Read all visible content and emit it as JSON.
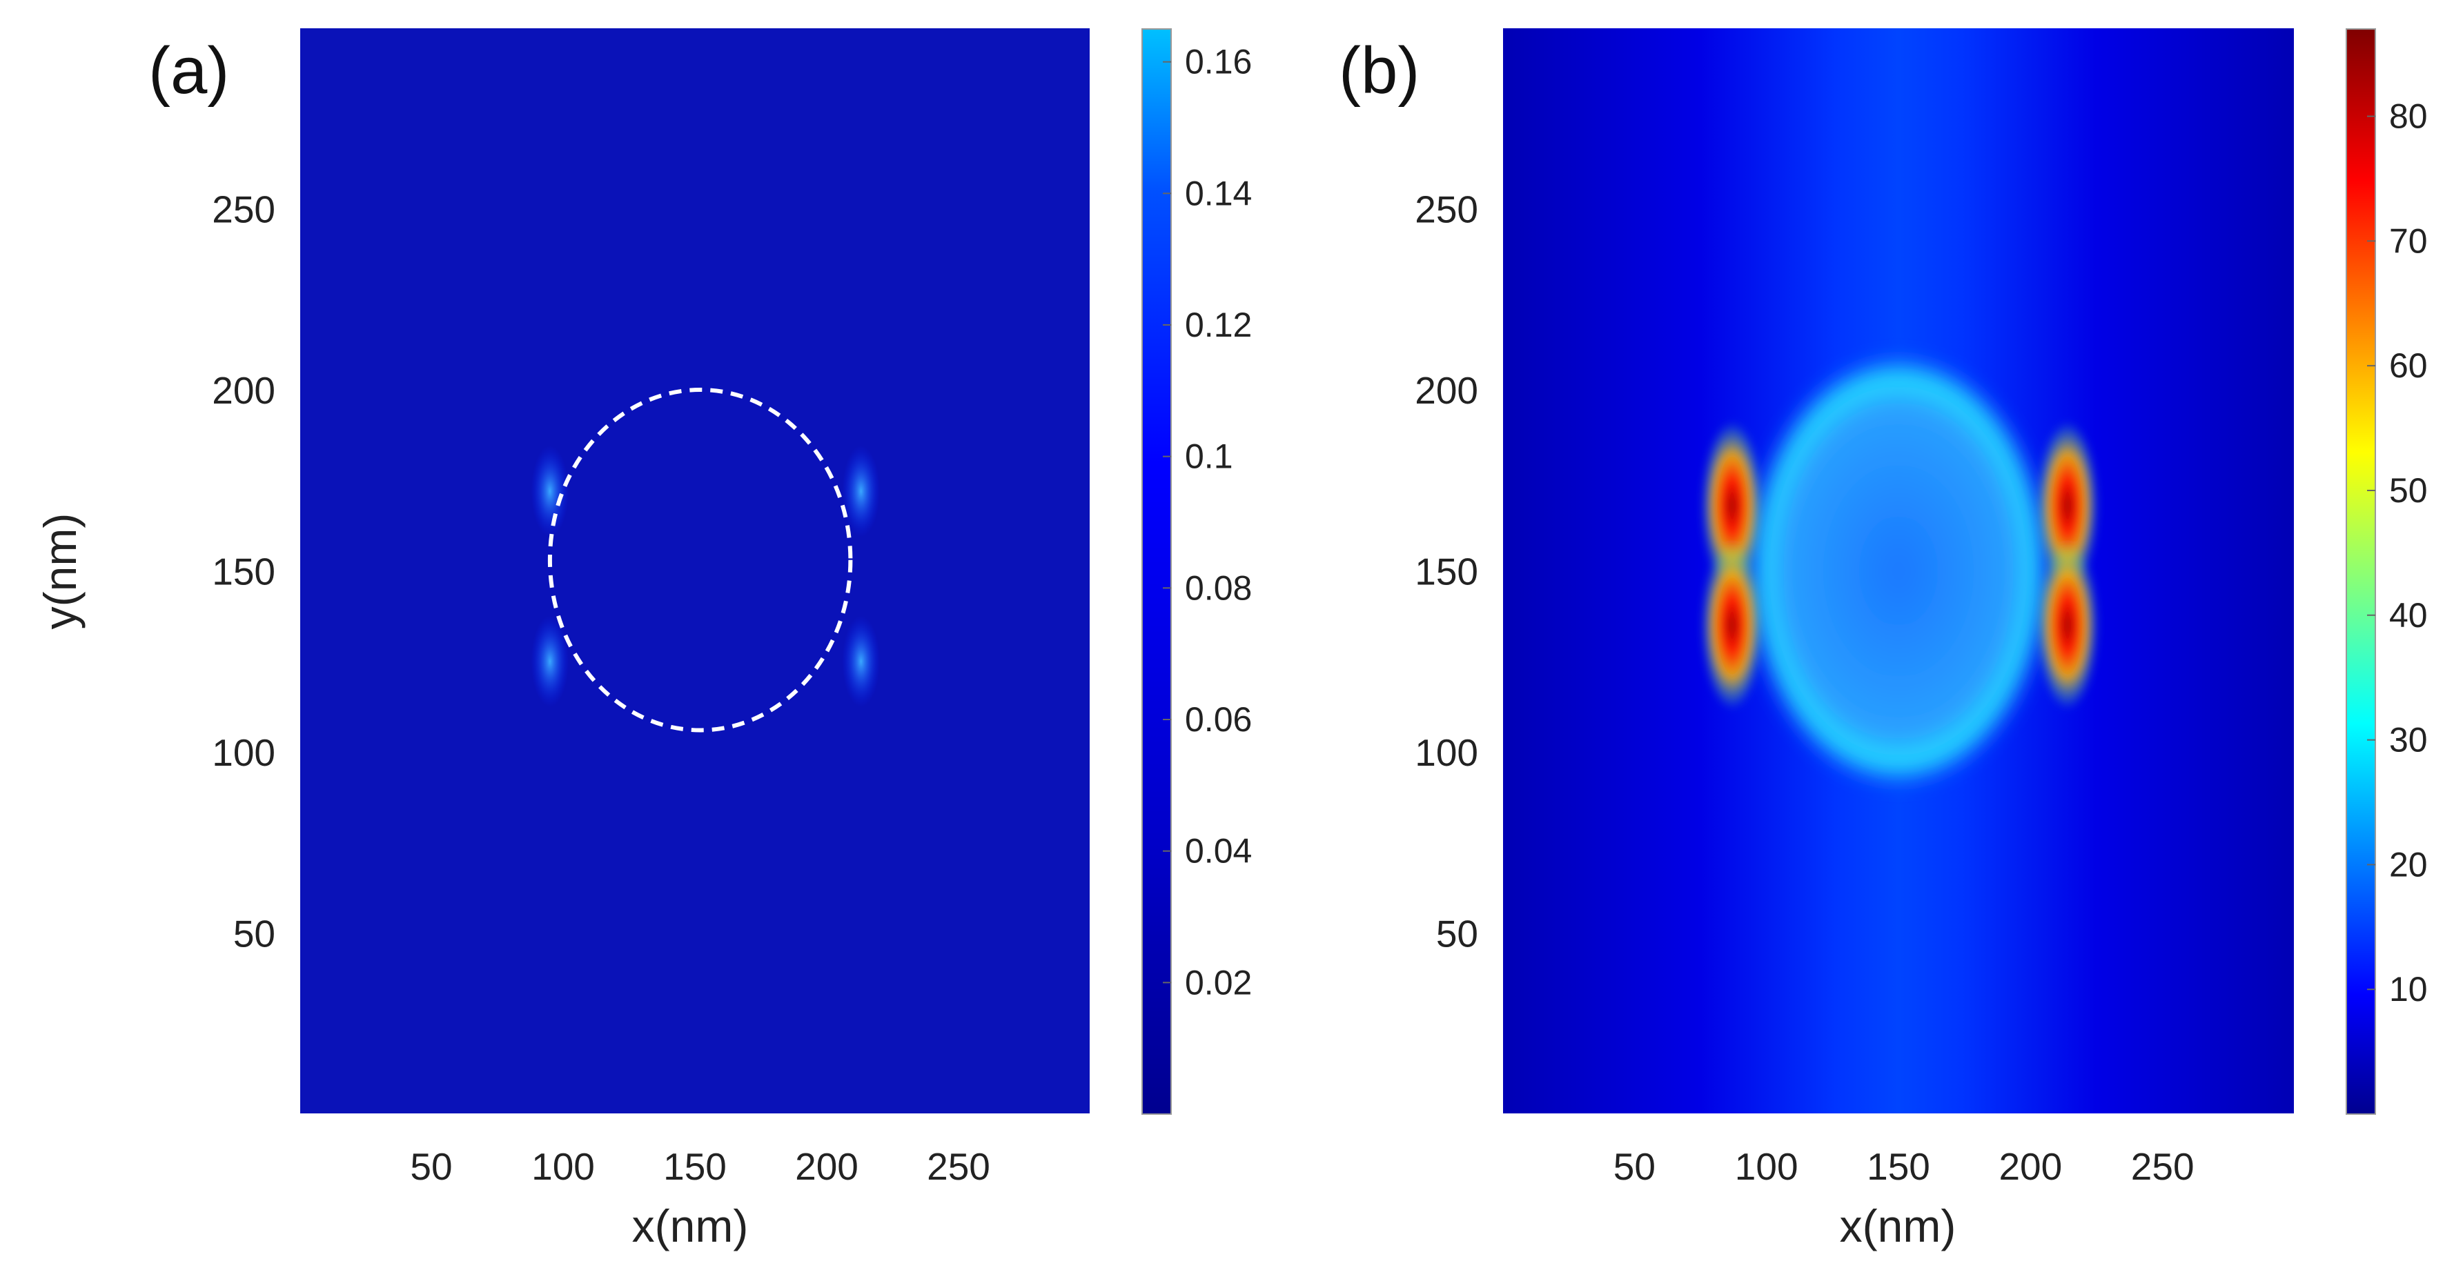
{
  "chart_data": [
    {
      "type": "heatmap",
      "panel_label": "(a)",
      "xlabel": "x(nm)",
      "ylabel": "y(nm)",
      "xlim": [
        0,
        300
      ],
      "ylim": [
        0,
        300
      ],
      "xticks": [
        50,
        100,
        150,
        200,
        250
      ],
      "yticks": [
        50,
        100,
        150,
        200,
        250
      ],
      "colormap": "jet",
      "colorbar": {
        "min": 0,
        "max": 0.165,
        "ticks": [
          0.02,
          0.04,
          0.06,
          0.08,
          0.1,
          0.12,
          0.14,
          0.16
        ],
        "tick_labels": [
          "0.02",
          "0.04",
          "0.06",
          "0.08",
          "0.1",
          "0.12",
          "0.14",
          "0.16"
        ]
      },
      "background_value": 0.012,
      "hotspots": [
        {
          "x": 95,
          "y": 172,
          "value": 0.15
        },
        {
          "x": 95,
          "y": 125,
          "value": 0.15
        },
        {
          "x": 213,
          "y": 172,
          "value": 0.15
        },
        {
          "x": 213,
          "y": 125,
          "value": 0.15
        }
      ],
      "annotation": {
        "shape": "dashed-circle",
        "center": [
          152,
          153
        ],
        "radius_x": 57,
        "radius_y": 47,
        "color": "#ffffff"
      }
    },
    {
      "type": "heatmap",
      "panel_label": "(b)",
      "xlabel": "x(nm)",
      "ylabel": "",
      "xlim": [
        0,
        300
      ],
      "ylim": [
        0,
        300
      ],
      "xticks": [
        50,
        100,
        150,
        200,
        250
      ],
      "yticks": [
        50,
        100,
        150,
        200,
        250
      ],
      "colormap": "jet",
      "colorbar": {
        "min": 0,
        "max": 87,
        "ticks": [
          10,
          20,
          30,
          40,
          50,
          60,
          70,
          80
        ],
        "tick_labels": [
          "10",
          "20",
          "30",
          "40",
          "50",
          "60",
          "70",
          "80"
        ]
      },
      "background_value": 8,
      "center_band_value": 14,
      "particle": {
        "center": [
          150,
          150
        ],
        "radius_x": 58,
        "radius_y": 60,
        "interior_value": 22,
        "rim_value": 32
      },
      "hotspots": [
        {
          "x": 87,
          "y": 168,
          "value": 85
        },
        {
          "x": 87,
          "y": 135,
          "value": 85
        },
        {
          "x": 214,
          "y": 168,
          "value": 85
        },
        {
          "x": 214,
          "y": 135,
          "value": 85
        }
      ]
    }
  ]
}
